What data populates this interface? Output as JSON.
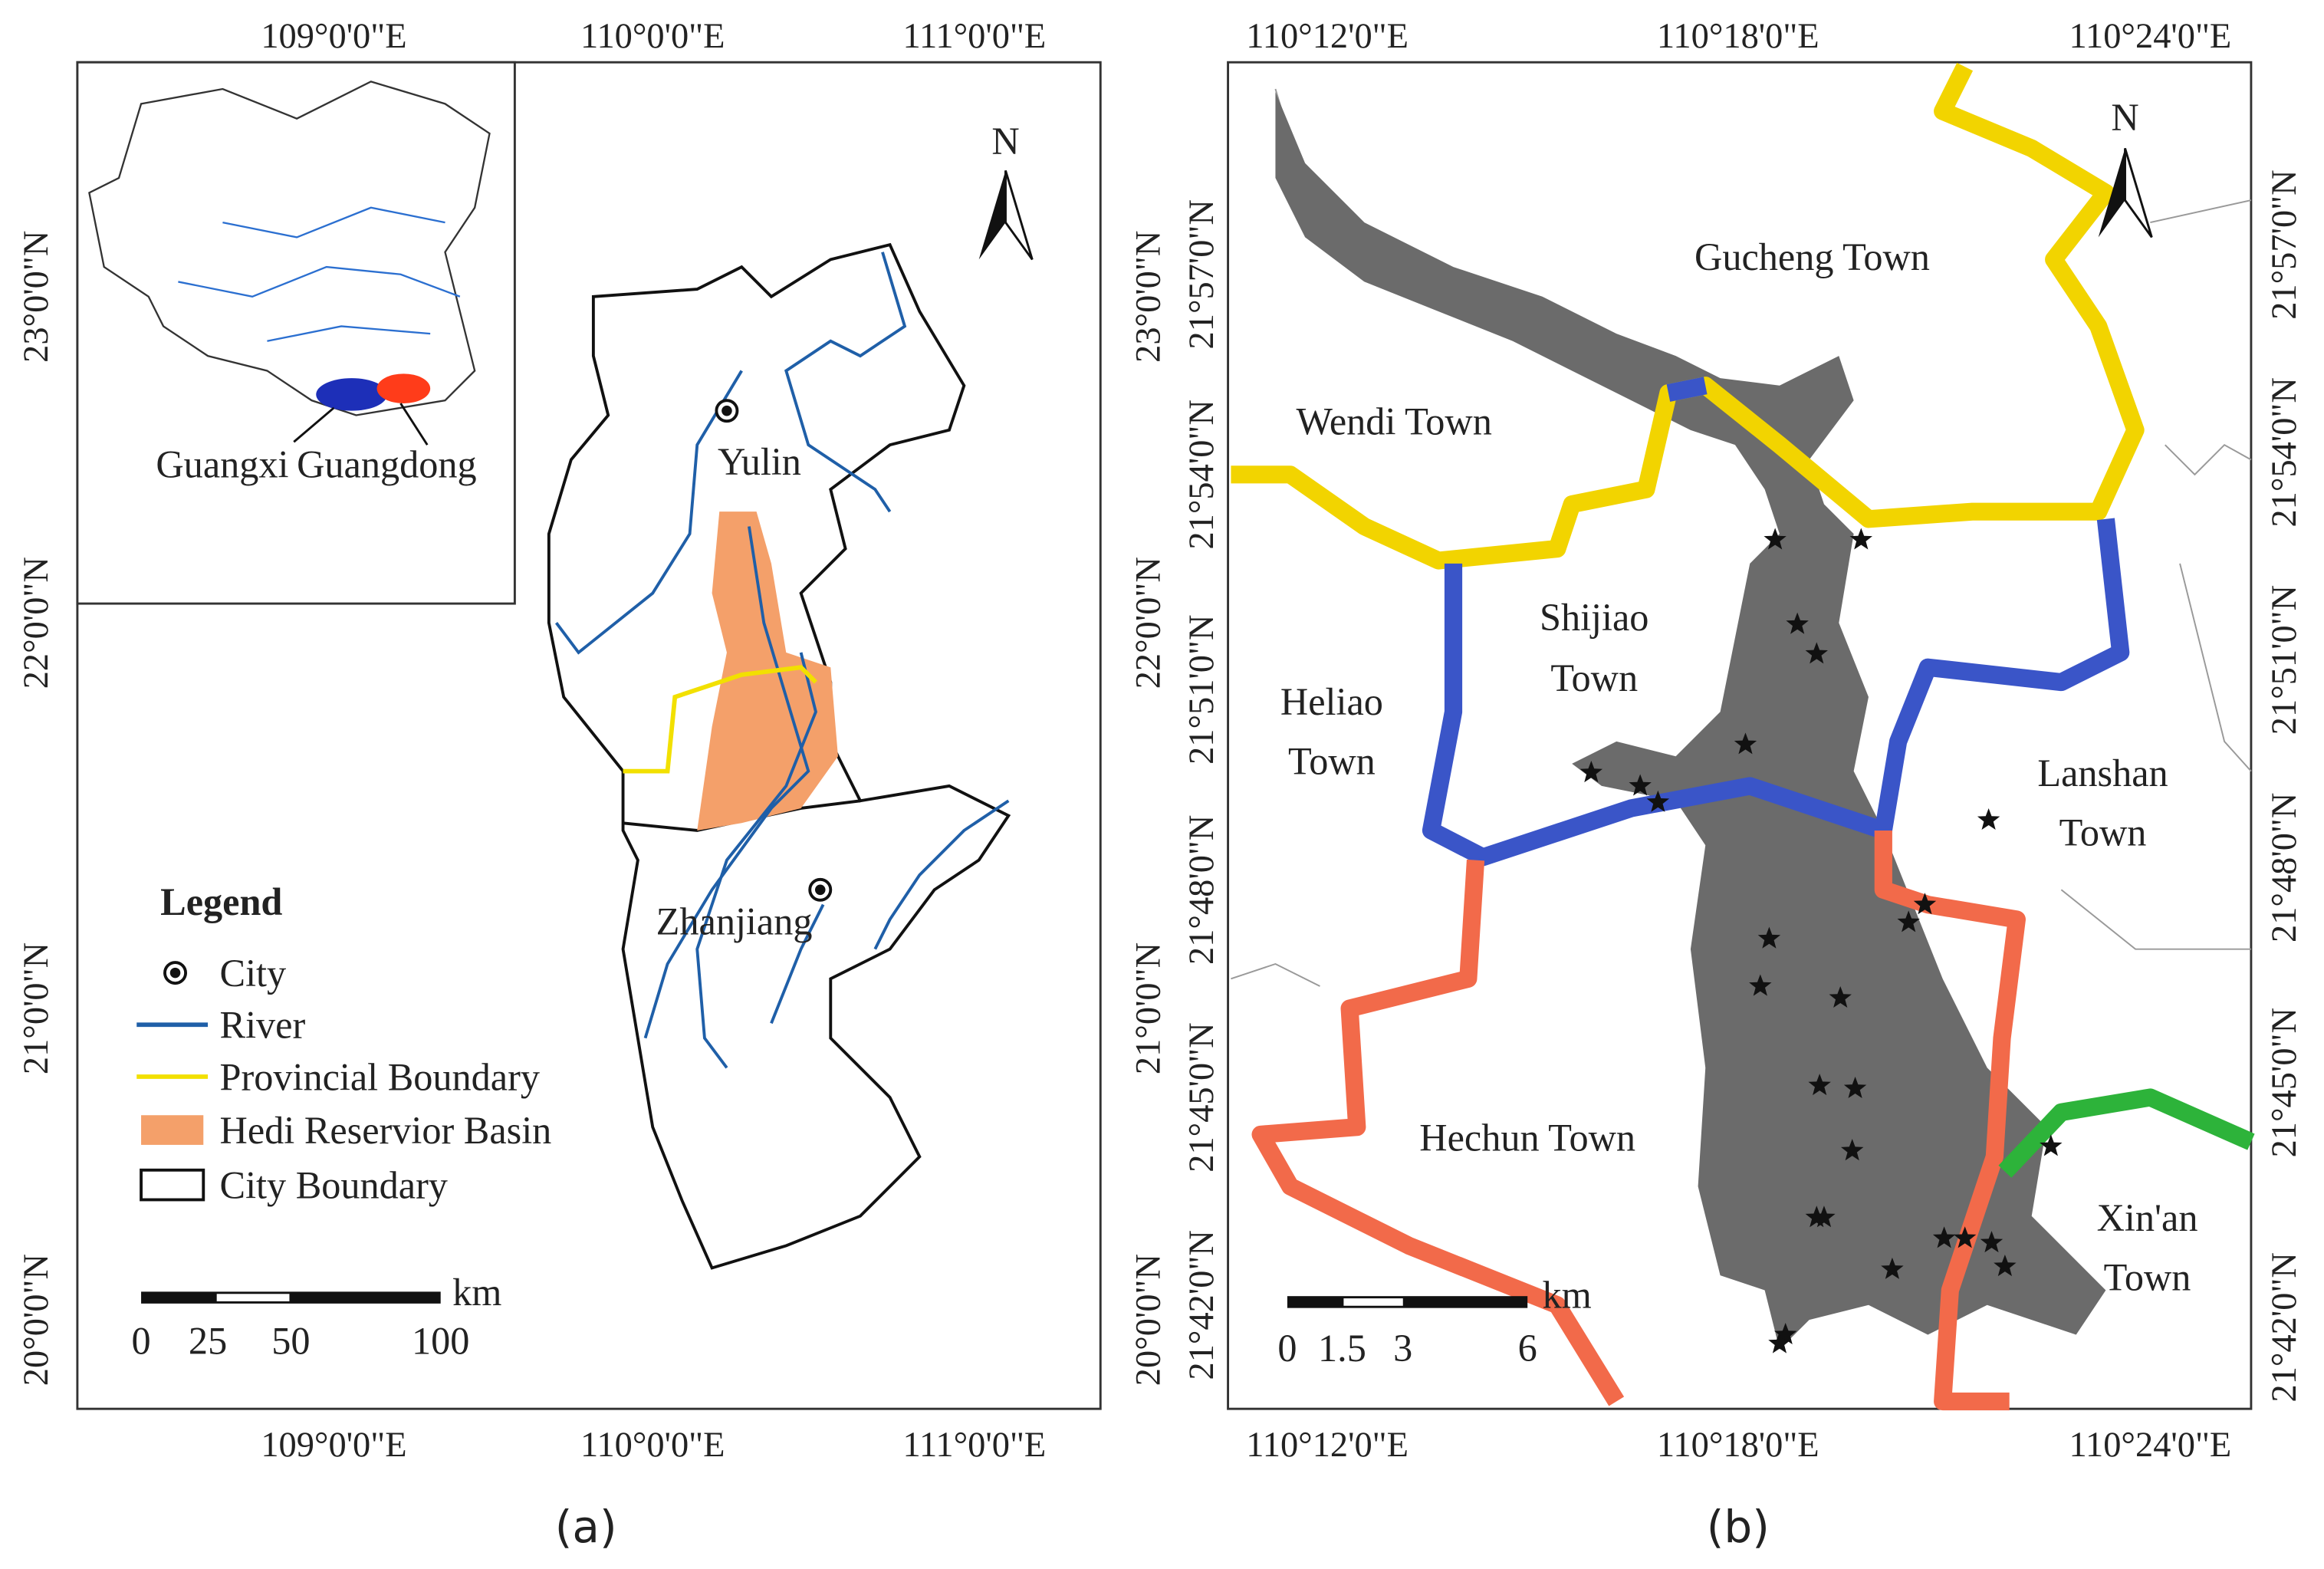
{
  "panel_a": {
    "caption": "(a)",
    "lon_labels": [
      "109°0'0\"E",
      "110°0'0\"E",
      "111°0'0\"E"
    ],
    "lat_labels": [
      "23°0'0\"N",
      "22°0'0\"N",
      "21°0'0\"N",
      "20°0'0\"N"
    ],
    "inset_labels": [
      "Guangxi",
      "Guangdong"
    ],
    "cities": [
      "Yulin",
      "Zhanjiang"
    ],
    "north": "N",
    "legend": {
      "title": "Legend",
      "items": [
        "City",
        "River",
        "Provincial Boundary",
        "Hedi Reservior Basin",
        "City Boundary"
      ]
    },
    "scale_bar": {
      "unit": "km",
      "labels": [
        "0",
        "25",
        "50",
        "100"
      ]
    }
  },
  "panel_b": {
    "caption": "(b)",
    "lon_labels": [
      "110°12'0\"E",
      "110°18'0\"E",
      "110°24'0\"E"
    ],
    "lat_labels": [
      "21°57'0\"N",
      "21°54'0\"N",
      "21°51'0\"N",
      "21°48'0\"N",
      "21°45'0\"N",
      "21°42'0\"N"
    ],
    "north": "N",
    "towns": [
      [
        "Gucheng Town"
      ],
      [
        "Wendi Town"
      ],
      [
        "Shijiao",
        "Town"
      ],
      [
        "Heliao",
        "Town"
      ],
      [
        "Lanshan",
        "Town"
      ],
      [
        "Hechun Town"
      ],
      [
        "Xin'an",
        "Town"
      ]
    ],
    "scale_bar": {
      "unit": "km",
      "labels": [
        "0",
        "1.5",
        "3",
        "6"
      ]
    }
  }
}
